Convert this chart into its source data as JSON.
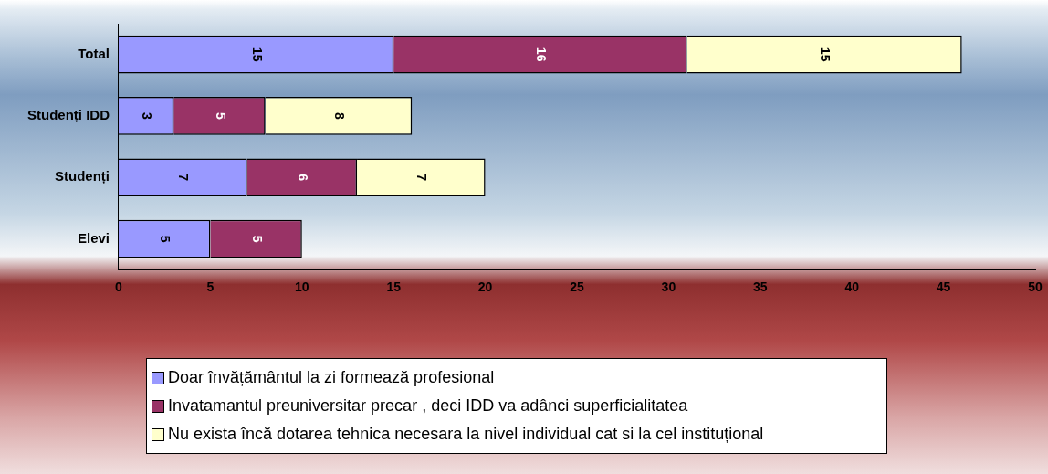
{
  "chart_data": {
    "type": "bar",
    "orientation": "horizontal",
    "stacked": true,
    "categories": [
      "Total",
      "Studenți IDD",
      "Studenți",
      "Elevi"
    ],
    "series": [
      {
        "name": "Doar învățământul la zi formează profesional",
        "color": "#9999ff",
        "values": [
          15,
          3,
          7,
          5
        ]
      },
      {
        "name": "Invatamantul preuniversitar precar , deci IDD va adânci superficialitatea",
        "color": "#993366",
        "values": [
          16,
          5,
          6,
          5
        ]
      },
      {
        "name": "Nu exista încă dotarea tehnica necesara la nivel individual cat si la cel instituțional",
        "color": "#ffffcc",
        "values": [
          15,
          8,
          7,
          null
        ]
      }
    ],
    "xlim": [
      0,
      50
    ],
    "xticks": [
      0,
      5,
      10,
      15,
      20,
      25,
      30,
      35,
      40,
      45,
      50
    ],
    "data_labels": true,
    "grid": false,
    "legend": "bottom"
  }
}
